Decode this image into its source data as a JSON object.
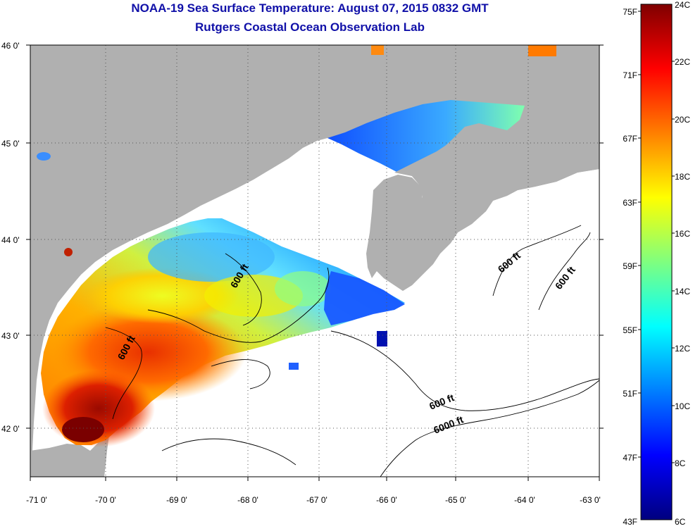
{
  "title": {
    "line1": "NOAA-19 Sea Surface Temperature:  August 07, 2015 0832 GMT",
    "line2": "Rutgers Coastal Ocean Observation Lab"
  },
  "map": {
    "lon_ticks": [
      "-71 0'",
      "-70 0'",
      "-69 0'",
      "-68 0'",
      "-67 0'",
      "-66 0'",
      "-65 0'",
      "-64 0'",
      "-63 0'"
    ],
    "lat_ticks": [
      "46 0'",
      "45 0'",
      "44 0'",
      "43 0'",
      "42 0'"
    ],
    "contour_labels": [
      "600 ft",
      "600 ft",
      "600 ft",
      "600 ft",
      "600 ft",
      "6000 ft"
    ],
    "colors": {
      "land": "#b0b0b0",
      "ocean_nodata": "#ffffff",
      "grid": "#555555"
    }
  },
  "colorbar": {
    "fahrenheit_labels": [
      "75F",
      "71F",
      "67F",
      "63F",
      "59F",
      "55F",
      "51F",
      "47F",
      "43F"
    ],
    "celsius_labels": [
      "24C",
      "22C",
      "20C",
      "18C",
      "16C",
      "14C",
      "12C",
      "10C",
      "8C",
      "6C"
    ],
    "colors": [
      "#00007f",
      "#0000ff",
      "#007fff",
      "#00ffff",
      "#7fff7f",
      "#ffff00",
      "#ff7f00",
      "#ff0000",
      "#7f0000"
    ]
  }
}
